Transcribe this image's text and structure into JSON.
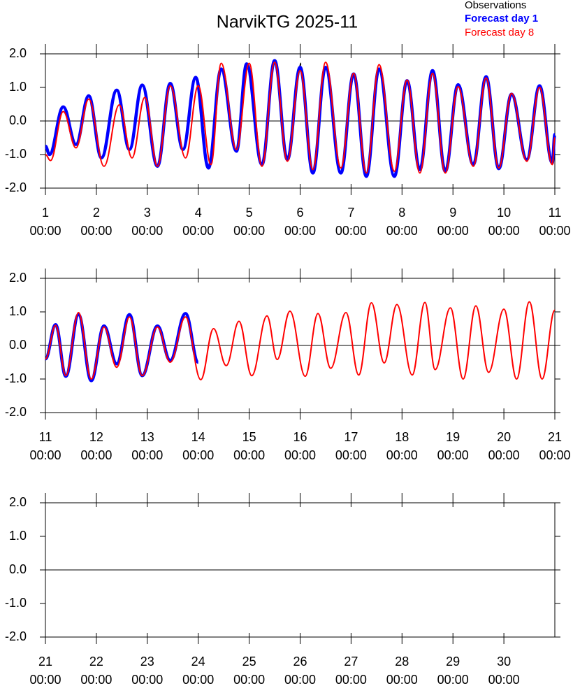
{
  "chart_data": [
    {
      "type": "line",
      "title": "NarvikTG 2025-11",
      "xlim": [
        1,
        11
      ],
      "xticks": [
        1,
        2,
        3,
        4,
        5,
        6,
        7,
        8,
        9,
        10,
        11
      ],
      "xtick_sublabel": "00:00",
      "ylim": [
        -2,
        2
      ],
      "yticks": [
        {
          "value": -2,
          "label": "-2.0"
        },
        {
          "value": -1,
          "label": "-1.0"
        },
        {
          "value": 0,
          "label": "0.0"
        },
        {
          "value": 1,
          "label": "1.0"
        },
        {
          "value": 2,
          "label": "2.0"
        }
      ],
      "series": [
        {
          "name": "Observations",
          "color": "#000000",
          "x": [
            5.97,
            6.02
          ],
          "values": [
            1.5,
            1.72
          ]
        },
        {
          "name": "Forecast day 1",
          "color": "#0000ff",
          "x": [
            1.0,
            1.08,
            1.35,
            1.6,
            1.85,
            2.1,
            2.4,
            2.65,
            2.9,
            3.2,
            3.45,
            3.7,
            3.95,
            4.2,
            4.45,
            4.75,
            4.95,
            5.25,
            5.5,
            5.75,
            6.0,
            6.25,
            6.5,
            6.8,
            7.05,
            7.3,
            7.55,
            7.85,
            8.1,
            8.35,
            8.6,
            8.85,
            9.1,
            9.4,
            9.65,
            9.9,
            10.15,
            10.45,
            10.7,
            10.95,
            11.0
          ],
          "values": [
            -0.75,
            -1.0,
            0.42,
            -0.7,
            0.75,
            -1.1,
            0.92,
            -0.85,
            1.07,
            -1.35,
            1.12,
            -0.85,
            1.3,
            -1.4,
            1.55,
            -0.9,
            1.7,
            -1.3,
            1.8,
            -1.15,
            1.6,
            -1.55,
            1.6,
            -1.55,
            1.4,
            -1.65,
            1.55,
            -1.65,
            1.2,
            -1.45,
            1.5,
            -1.5,
            1.08,
            -1.3,
            1.32,
            -1.42,
            0.8,
            -1.15,
            1.05,
            -1.25,
            -0.4
          ]
        },
        {
          "name": "Forecast day 8",
          "color": "#ff0000",
          "x": [
            1.0,
            1.1,
            1.35,
            1.6,
            1.85,
            2.15,
            2.45,
            2.7,
            2.95,
            3.2,
            3.45,
            3.75,
            4.0,
            4.25,
            4.45,
            4.75,
            5.0,
            5.25,
            5.5,
            5.75,
            6.0,
            6.25,
            6.5,
            6.8,
            7.05,
            7.3,
            7.55,
            7.85,
            8.1,
            8.35,
            8.6,
            8.85,
            9.1,
            9.4,
            9.65,
            9.9,
            10.15,
            10.45,
            10.7,
            10.95,
            11.0
          ],
          "values": [
            -1.0,
            -1.18,
            0.28,
            -0.8,
            0.65,
            -1.35,
            0.48,
            -1.1,
            0.7,
            -1.35,
            1.05,
            -1.1,
            1.05,
            -1.3,
            1.72,
            -0.85,
            1.72,
            -1.35,
            1.75,
            -1.2,
            1.5,
            -1.45,
            1.75,
            -1.4,
            1.42,
            -1.55,
            1.68,
            -1.5,
            1.22,
            -1.55,
            1.42,
            -1.55,
            1.02,
            -1.35,
            1.28,
            -1.4,
            0.82,
            -1.2,
            1.0,
            -1.3,
            -0.5
          ]
        }
      ]
    },
    {
      "type": "line",
      "xlim": [
        11,
        21
      ],
      "xticks": [
        11,
        12,
        13,
        14,
        15,
        16,
        17,
        18,
        19,
        20,
        21
      ],
      "xtick_sublabel": "00:00",
      "ylim": [
        -2,
        2
      ],
      "yticks": [
        {
          "value": -2,
          "label": "-2.0"
        },
        {
          "value": -1,
          "label": "-1.0"
        },
        {
          "value": 0,
          "label": "0.0"
        },
        {
          "value": 1,
          "label": "1.0"
        },
        {
          "value": 2,
          "label": "2.0"
        }
      ],
      "series": [
        {
          "color": "#0000ff",
          "x": [
            11.0,
            11.2,
            11.4,
            11.65,
            11.9,
            12.15,
            12.4,
            12.65,
            12.9,
            13.2,
            13.45,
            13.75,
            14.0
          ],
          "values": [
            -0.4,
            0.62,
            -0.92,
            0.92,
            -1.05,
            0.58,
            -0.55,
            0.92,
            -0.9,
            0.58,
            -0.45,
            0.95,
            -0.5
          ]
        },
        {
          "color": "#ff0000",
          "x": [
            11.0,
            11.2,
            11.4,
            11.65,
            11.9,
            12.15,
            12.4,
            12.65,
            12.9,
            13.2,
            13.45,
            13.75,
            14.05,
            14.3,
            14.55,
            14.8,
            15.05,
            15.35,
            15.55,
            15.8,
            16.1,
            16.35,
            16.6,
            16.9,
            17.15,
            17.4,
            17.65,
            17.9,
            18.2,
            18.45,
            18.65,
            18.95,
            19.2,
            19.45,
            19.7,
            20.0,
            20.25,
            20.5,
            20.75,
            21.0
          ],
          "values": [
            -0.4,
            0.6,
            -0.9,
            0.98,
            -1.0,
            0.55,
            -0.65,
            0.85,
            -0.9,
            0.55,
            -0.5,
            0.85,
            -1.02,
            0.5,
            -0.6,
            0.72,
            -0.9,
            0.88,
            -0.42,
            1.02,
            -0.92,
            0.95,
            -0.68,
            0.98,
            -0.88,
            1.27,
            -0.52,
            1.22,
            -0.88,
            1.28,
            -0.72,
            1.12,
            -1.0,
            1.18,
            -0.8,
            1.08,
            -1.0,
            1.3,
            -1.0,
            1.05
          ]
        }
      ]
    },
    {
      "type": "line",
      "xlim": [
        21,
        31
      ],
      "xticks": [
        21,
        22,
        23,
        24,
        25,
        26,
        27,
        28,
        29,
        30
      ],
      "xtick_sublabel": "00:00",
      "ylim": [
        -2,
        2
      ],
      "yticks": [
        {
          "value": -2,
          "label": "-2.0"
        },
        {
          "value": -1,
          "label": "-1.0"
        },
        {
          "value": 0,
          "label": "0.0"
        },
        {
          "value": 1,
          "label": "1.0"
        },
        {
          "value": 2,
          "label": "2.0"
        }
      ],
      "series": []
    }
  ]
}
